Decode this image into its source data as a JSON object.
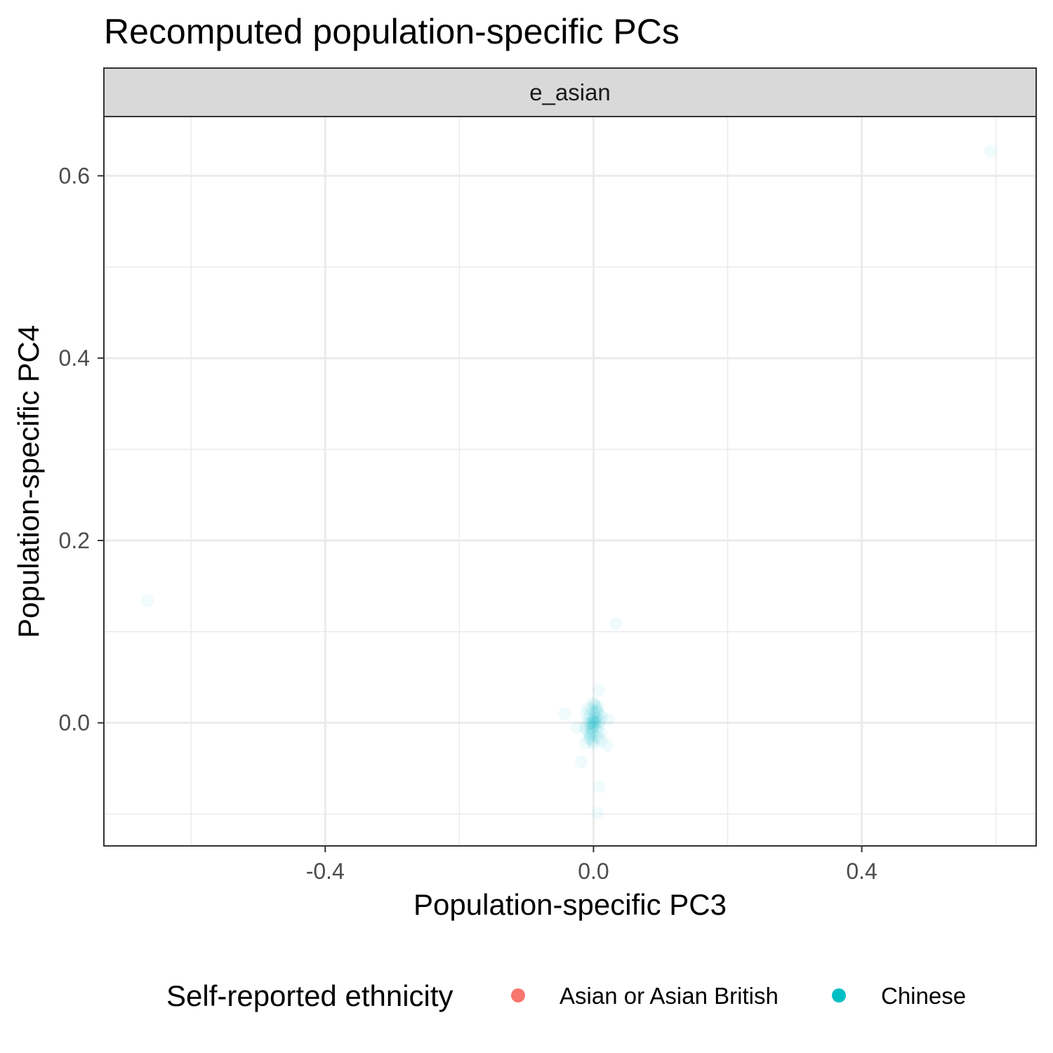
{
  "chart_data": {
    "type": "scatter",
    "title": "Recomputed population-specific PCs",
    "facet": "e_asian",
    "xlabel": "Population-specific PC3",
    "ylabel": "Population-specific PC4",
    "xlim": [
      -0.73,
      0.66
    ],
    "ylim": [
      -0.135,
      0.665
    ],
    "x_ticks": [
      -0.4,
      0.0,
      0.4
    ],
    "y_ticks": [
      0.0,
      0.2,
      0.4,
      0.6
    ],
    "x_tick_labels": [
      "-0.4",
      "0.0",
      "0.4"
    ],
    "y_tick_labels": [
      "0.0",
      "0.2",
      "0.4",
      "0.6"
    ],
    "grid": true,
    "legend": {
      "title": "Self-reported ethnicity",
      "position": "bottom",
      "entries": [
        {
          "label": "Asian or Asian British",
          "color": "#F8766D"
        },
        {
          "label": "Chinese",
          "color": "#00BFC4"
        }
      ]
    },
    "series": [
      {
        "name": "Chinese",
        "color": "#00BFC4",
        "opacity": 0.06,
        "points": [
          [
            -0.665,
            0.134
          ],
          [
            0.592,
            0.627
          ],
          [
            0.033,
            0.109
          ],
          [
            -0.043,
            0.01
          ],
          [
            0.008,
            0.036
          ],
          [
            -0.018,
            -0.043
          ],
          [
            0.009,
            -0.07
          ],
          [
            0.006,
            -0.099
          ],
          [
            0.02,
            -0.025
          ],
          [
            0.012,
            -0.02
          ],
          [
            -0.012,
            -0.022
          ],
          [
            -0.025,
            -0.005
          ],
          [
            0.022,
            0.004
          ],
          [
            0.0,
            0.0
          ],
          [
            0.002,
            0.01
          ],
          [
            -0.002,
            -0.01
          ],
          [
            0.004,
            0.005
          ],
          [
            -0.004,
            -0.005
          ],
          [
            0.006,
            0.012
          ],
          [
            -0.006,
            -0.012
          ],
          [
            0.003,
            -0.015
          ],
          [
            -0.003,
            0.015
          ],
          [
            0.008,
            -0.004
          ],
          [
            -0.008,
            0.004
          ],
          [
            0.001,
            0.02
          ],
          [
            -0.001,
            -0.02
          ],
          [
            0.005,
            -0.008
          ],
          [
            -0.005,
            0.008
          ],
          [
            0.01,
            0.002
          ],
          [
            -0.01,
            -0.002
          ],
          [
            0.007,
            0.017
          ],
          [
            -0.007,
            -0.017
          ],
          [
            0.002,
            -0.003
          ],
          [
            -0.002,
            0.003
          ],
          [
            0.004,
            0.018
          ],
          [
            -0.004,
            -0.018
          ],
          [
            0.009,
            0.009
          ],
          [
            -0.009,
            -0.009
          ],
          [
            0.003,
            0.006
          ],
          [
            -0.003,
            -0.006
          ],
          [
            0.011,
            -0.011
          ],
          [
            -0.011,
            0.011
          ],
          [
            0.0,
            -0.023
          ],
          [
            0.0,
            0.022
          ],
          [
            0.006,
            0.0
          ],
          [
            -0.006,
            0.0
          ],
          [
            0.001,
            0.012
          ],
          [
            -0.001,
            -0.012
          ],
          [
            0.013,
            0.006
          ],
          [
            -0.013,
            -0.006
          ],
          [
            0.002,
            0.001
          ],
          [
            -0.002,
            -0.001
          ],
          [
            0.005,
            0.014
          ],
          [
            -0.005,
            -0.014
          ],
          [
            0.008,
            -0.016
          ],
          [
            -0.008,
            0.016
          ],
          [
            0.0,
            0.004
          ],
          [
            0.0,
            -0.004
          ],
          [
            0.003,
            0.0
          ],
          [
            -0.003,
            0.0
          ]
        ]
      }
    ]
  }
}
